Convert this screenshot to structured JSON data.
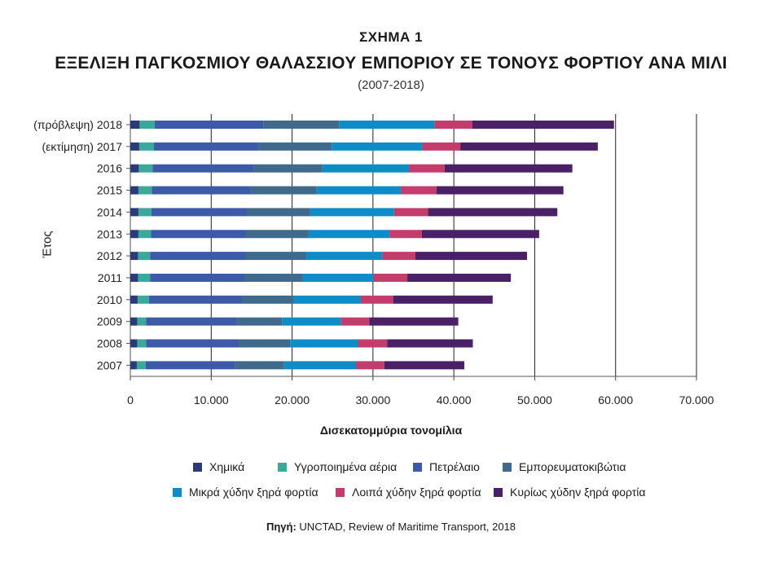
{
  "figure_label": "ΣΧΗΜΑ 1",
  "title": "ΕΞΕΛΙΞΗ ΠΑΓΚΟΣΜΙΟΥ ΘΑΛΑΣΣΙΟΥ ΕΜΠΟΡΙΟΥ ΣΕ ΤΟΝΟΥΣ ΦΟΡΤΙΟΥ ΑΝΑ ΜΙΛΙ",
  "subtitle": "(2007-2018)",
  "source_label": "Πηγή:",
  "source_text": "UNCTAD, Review of Maritime Transport, 2018",
  "chart_data": {
    "type": "bar",
    "orientation": "horizontal",
    "stacked": true,
    "xlabel": "Δισεκατομμύρια τονομίλια",
    "ylabel": "Έτος",
    "xlim": [
      0,
      70000
    ],
    "xticks": [
      "0",
      "10.000",
      "20.000",
      "30.000",
      "40.000",
      "50.000",
      "60.000",
      "70.000"
    ],
    "grid": "vertical",
    "legend_position": "bottom",
    "categories": [
      "(πρόβλεψη) 2018",
      "(εκτίμηση) 2017",
      "2016",
      "2015",
      "2014",
      "2013",
      "2012",
      "2011",
      "2010",
      "2009",
      "2008",
      "2007"
    ],
    "series": [
      {
        "name": "Χημικά",
        "color": "#2b3a78",
        "values": [
          1150,
          1100,
          1050,
          1000,
          1000,
          1000,
          950,
          950,
          900,
          850,
          850,
          800
        ]
      },
      {
        "name": "Υγροποιημένα αέρια",
        "color": "#3aa89a",
        "values": [
          1850,
          1800,
          1700,
          1650,
          1600,
          1550,
          1500,
          1500,
          1400,
          1100,
          1100,
          1100
        ]
      },
      {
        "name": "Πετρέλαιο",
        "color": "#3c5aa8",
        "values": [
          13500,
          13000,
          12500,
          12200,
          11800,
          11700,
          11800,
          11600,
          11500,
          11200,
          11500,
          11000
        ]
      },
      {
        "name": "Εμπορευματοκιβώτια",
        "color": "#3f6a8c",
        "values": [
          9300,
          9000,
          8500,
          8200,
          7800,
          7800,
          7500,
          7200,
          6400,
          5600,
          6300,
          6100
        ]
      },
      {
        "name": "Μικρά χύδην ξηρά φορτία",
        "color": "#0f8cc8",
        "values": [
          11800,
          11200,
          10700,
          10400,
          10400,
          10000,
          9400,
          8800,
          8300,
          7300,
          8400,
          8900
        ]
      },
      {
        "name": "Λοιπά χύδην ξηρά φορτία",
        "color": "#c23c6c",
        "values": [
          4700,
          4700,
          4400,
          4400,
          4200,
          4000,
          4100,
          4200,
          4000,
          3500,
          3600,
          3500
        ]
      },
      {
        "name": "Κυρίως χύδην ξηρά φορτία",
        "color": "#4a2067",
        "values": [
          17500,
          17000,
          15800,
          15700,
          16000,
          14500,
          13800,
          12800,
          12300,
          11000,
          10600,
          9900
        ]
      }
    ]
  }
}
